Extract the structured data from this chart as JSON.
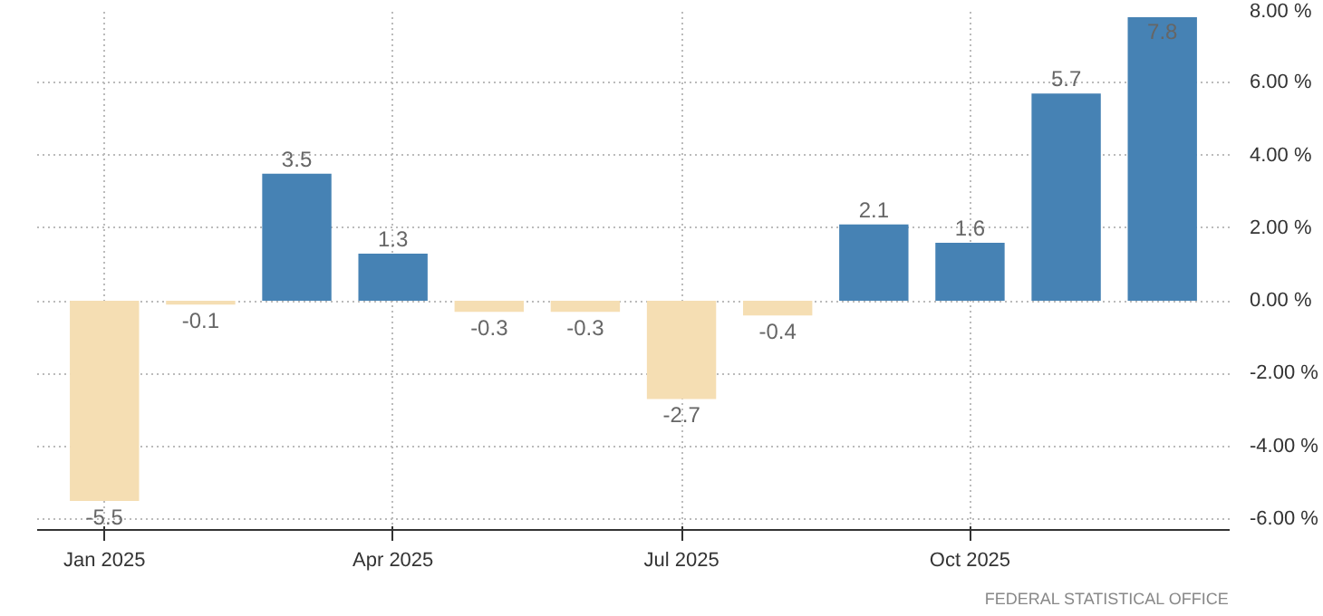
{
  "chart_data": {
    "type": "bar",
    "categories": [
      "Jan 2025",
      null,
      null,
      "Apr 2025",
      null,
      null,
      "Jul 2025",
      null,
      null,
      "Oct 2025",
      null,
      null
    ],
    "values": [
      -5.5,
      -0.1,
      3.5,
      1.3,
      -0.3,
      -0.3,
      -2.7,
      -0.4,
      2.1,
      1.6,
      5.7,
      7.8
    ],
    "colors": [
      "#f5deb3",
      "#f5deb3",
      "#4682b4",
      "#4682b4",
      "#f5deb3",
      "#f5deb3",
      "#f5deb3",
      "#f5deb3",
      "#4682b4",
      "#4682b4",
      "#4682b4",
      "#4682b4"
    ],
    "ylim": [
      -6.3,
      8
    ],
    "yticks": [
      {
        "value": -6,
        "label": "-6.00 %"
      },
      {
        "value": -4,
        "label": "-4.00 %"
      },
      {
        "value": -2,
        "label": "-2.00 %"
      },
      {
        "value": 0,
        "label": "0.00 %"
      },
      {
        "value": 2,
        "label": "2.00 %"
      },
      {
        "value": 4,
        "label": "4.00 %"
      },
      {
        "value": 6,
        "label": "6.00 %"
      },
      {
        "value": 8,
        "label": "8.00 %"
      }
    ],
    "grid": true,
    "data_labels": true,
    "annotations": [
      "FEDERAL STATISTICAL OFFICE"
    ]
  }
}
